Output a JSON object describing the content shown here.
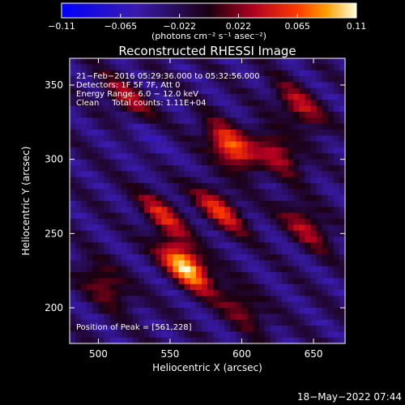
{
  "colorbar": {
    "ticks": [
      "−0.11",
      "−0.065",
      "−0.022",
      "0.022",
      "0.065",
      "0.11"
    ],
    "unit_label": "(photons cm⁻² s⁻¹ asec⁻²)"
  },
  "footer": {
    "timestamp": "18−May−2022 07:44"
  },
  "chart_data": {
    "type": "heatmap",
    "title": "Reconstructed RHESSI Image",
    "xlabel": "Heliocentric X (arcsec)",
    "ylabel": "Heliocentric Y (arcsec)",
    "xlim": [
      480,
      672
    ],
    "ylim": [
      176,
      368
    ],
    "xticks": [
      500,
      550,
      600,
      650
    ],
    "yticks": [
      200,
      250,
      300,
      350
    ],
    "color_range": [
      -0.11,
      0.11
    ],
    "annotations": [
      "21−Feb−2016 05:29:36.000 to 05:32:56.000",
      "Detectors: 1F 5F 7F, Att 0",
      "Energy Range: 6.0 − 12.0 keV",
      "Clean     Total counts: 1.11E+04"
    ],
    "peak_label": "Position of Peak = [561,228]",
    "peak": [
      561,
      228
    ],
    "sources": [
      {
        "x": 561,
        "y": 228,
        "value": 0.11
      },
      {
        "x": 592,
        "y": 308,
        "value": 0.08
      },
      {
        "x": 585,
        "y": 266,
        "value": 0.05
      },
      {
        "x": 545,
        "y": 262,
        "value": 0.04
      },
      {
        "x": 625,
        "y": 305,
        "value": 0.04
      },
      {
        "x": 645,
        "y": 255,
        "value": 0.035
      },
      {
        "x": 640,
        "y": 335,
        "value": 0.04
      },
      {
        "x": 505,
        "y": 215,
        "value": 0.03
      },
      {
        "x": 600,
        "y": 200,
        "value": 0.025
      },
      {
        "x": 520,
        "y": 340,
        "value": 0.03
      },
      {
        "x": 530,
        "y": 315,
        "value": -0.05
      }
    ]
  }
}
